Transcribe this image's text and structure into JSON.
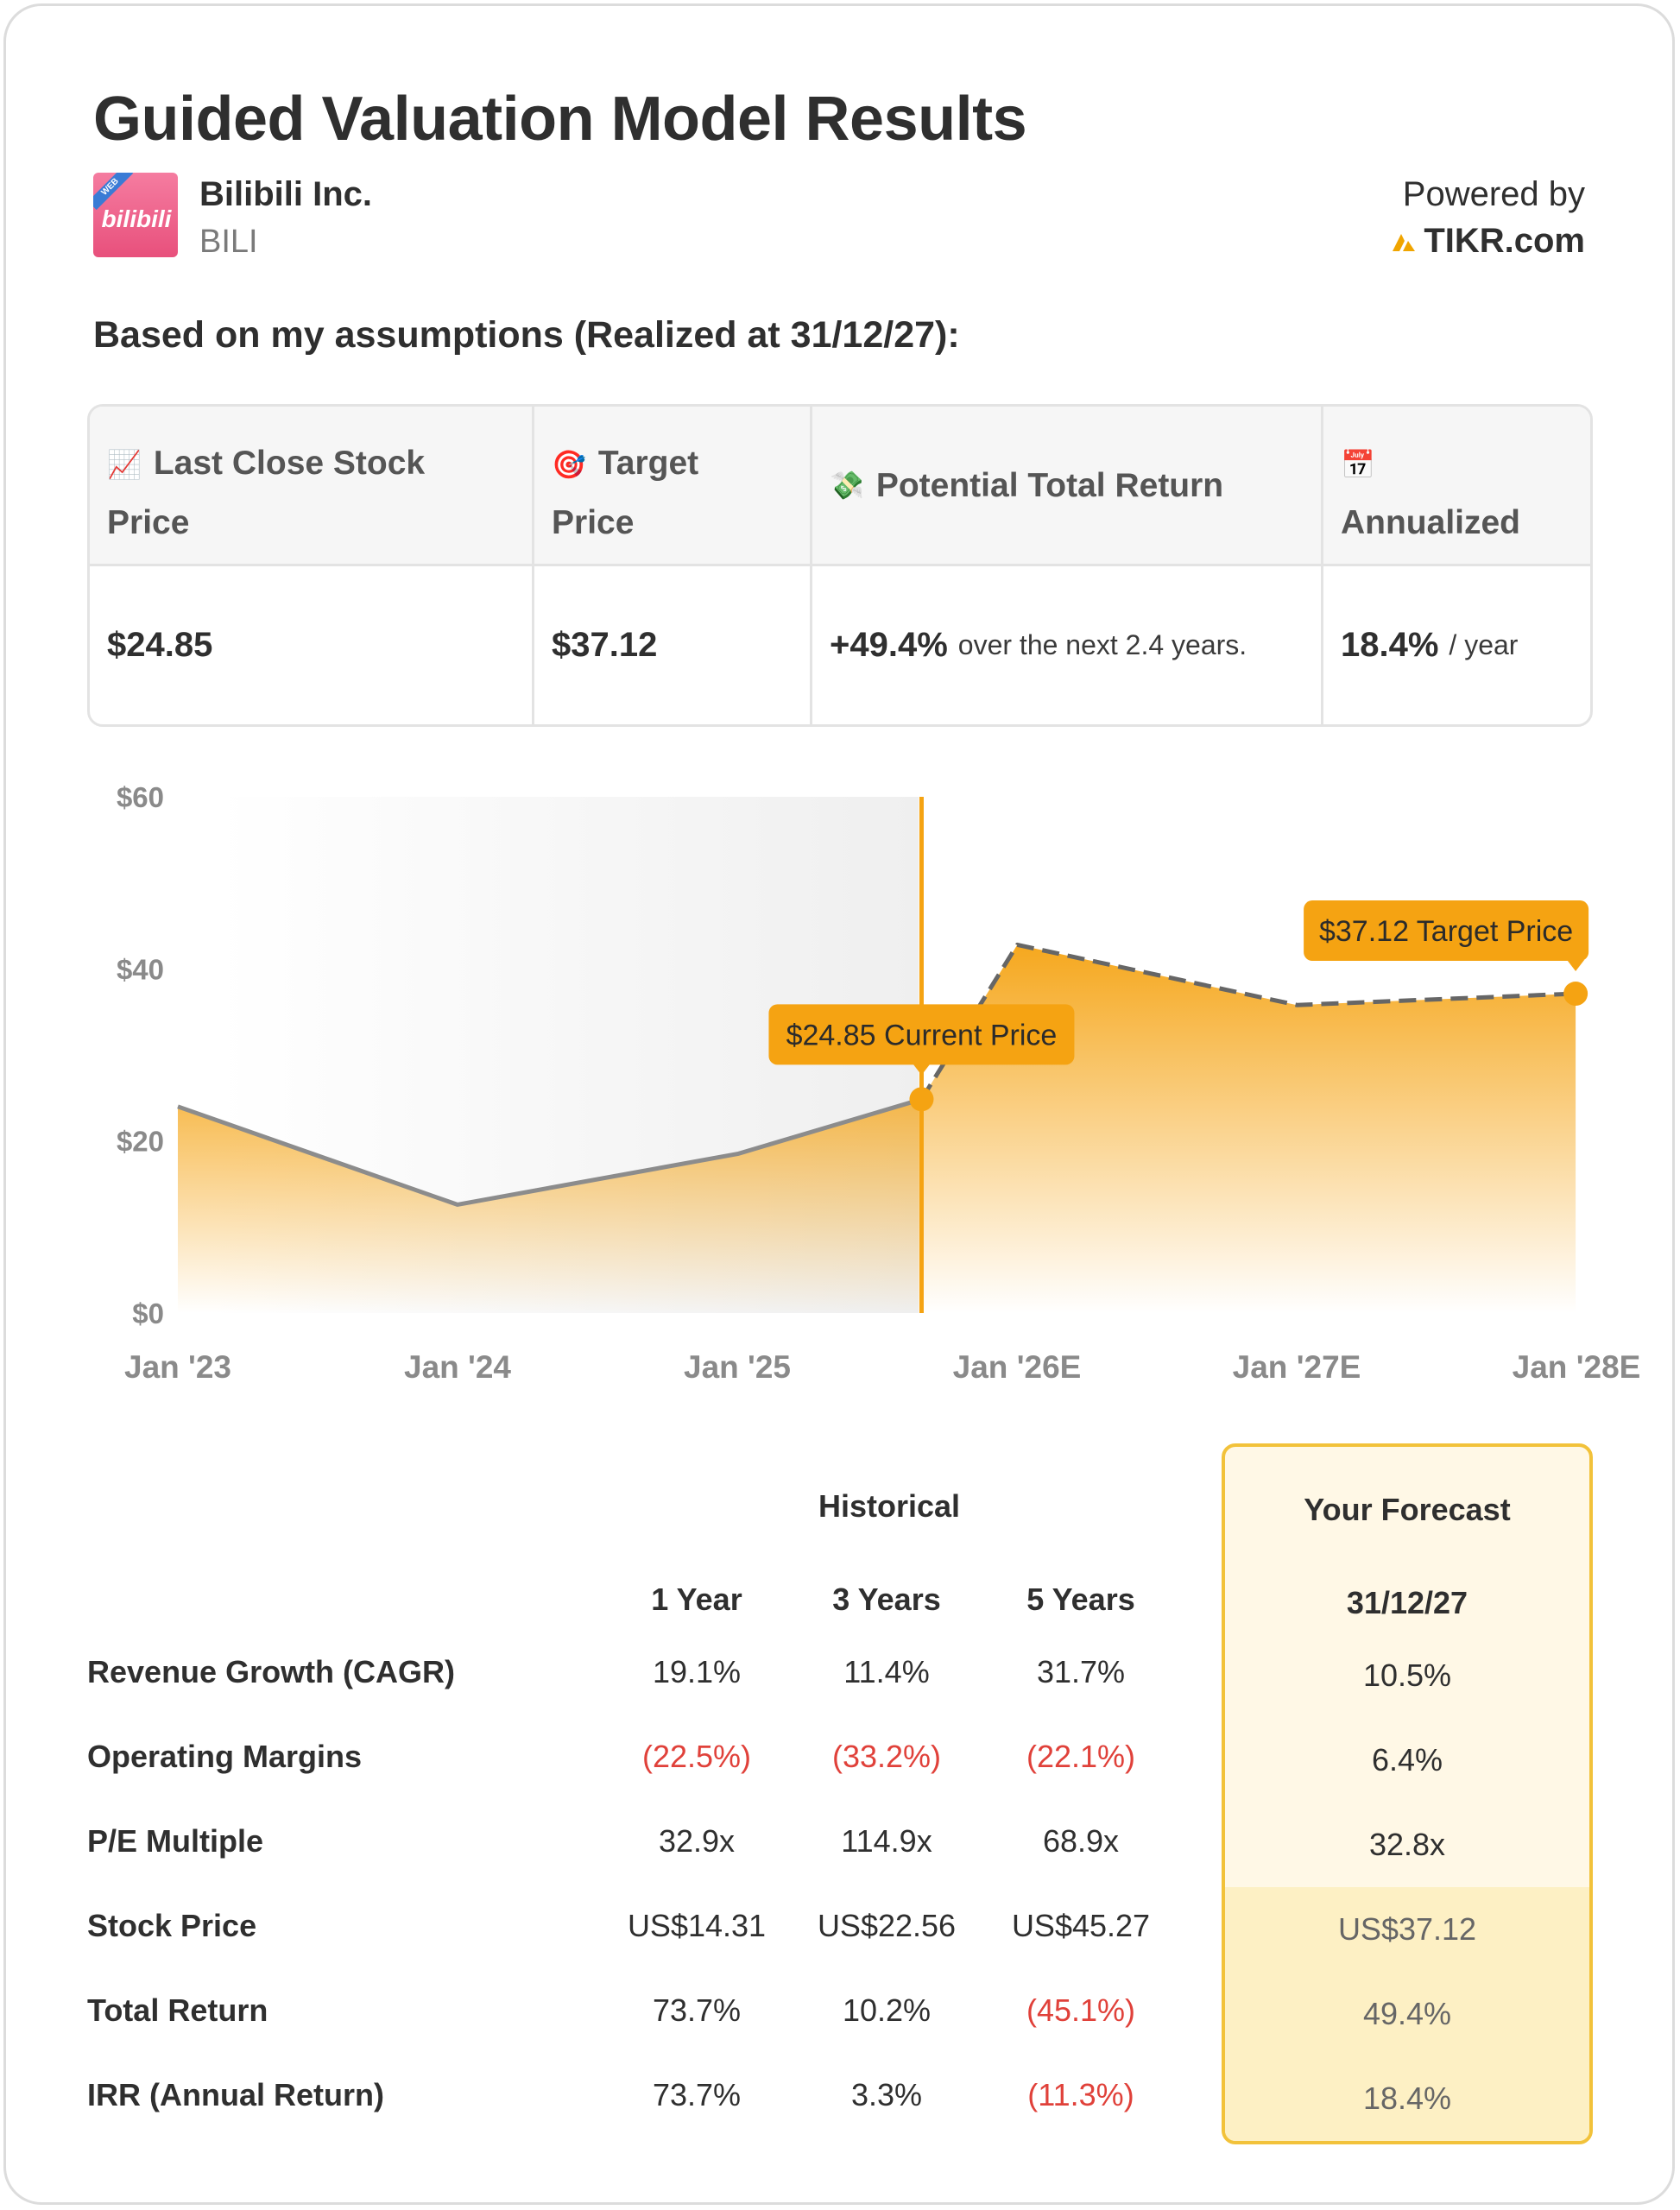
{
  "title": "Guided Valuation Model Results",
  "company": {
    "name": "Bilibili Inc.",
    "ticker": "BILI",
    "logo_text": "bilibili",
    "logo_badge": "WEB"
  },
  "powered": {
    "label": "Powered by",
    "brand": "TIKR.com",
    "brand_color": "#f0a500"
  },
  "assumptions": "Based on my assumptions (Realized at 31/12/27):",
  "metrics": {
    "last_close_label_1": "Last Close Stock",
    "last_close_label_2": "Price",
    "target_label_1": "Target",
    "target_label_2": "Price",
    "return_label": "Potential Total Return",
    "annual_label": "Annualized",
    "last_close_value": "$24.85",
    "target_value": "$37.12",
    "return_value": "+49.4%",
    "return_sub": "over the next 2.4 years.",
    "annual_value": "18.4%",
    "annual_sub": "/ year",
    "icons": [
      "chart-increasing-icon",
      "target-icon",
      "money-wings-icon",
      "calendar-icon"
    ]
  },
  "chart_data": {
    "type": "area",
    "y_ticks": [
      "$60",
      "$40",
      "$20",
      "$0"
    ],
    "ylim": [
      0,
      60
    ],
    "x_ticks": [
      "Jan '23",
      "Jan '24",
      "Jan '25",
      "Jan '26E",
      "Jan '27E",
      "Jan '28E"
    ],
    "series": [
      {
        "x": [
          "2023-01-01",
          "2024-01-01",
          "2025-01-01",
          "2025-08-29"
        ],
        "values": [
          24.0,
          12.6,
          18.5,
          24.85
        ]
      },
      {
        "x": [
          "2025-08-29",
          "2026-01-01",
          "2027-01-01",
          "2027-12-31"
        ],
        "values": [
          24.85,
          42.8,
          35.8,
          37.12
        ]
      }
    ],
    "current_price_label": "$24.85 Current Price",
    "target_price_label": "$37.12 Target Price",
    "accent_color": "#f5a312"
  },
  "table": {
    "historical_header": "Historical",
    "forecast_header": "Your Forecast",
    "columns": [
      "1 Year",
      "3 Years",
      "5 Years"
    ],
    "forecast_column": "31/12/27",
    "rows": [
      {
        "label": "Revenue Growth (CAGR)",
        "values": [
          "19.1%",
          "11.4%",
          "31.7%"
        ],
        "forecast": "10.5%"
      },
      {
        "label": "Operating Margins",
        "values": [
          "(22.5%)",
          "(33.2%)",
          "(22.1%)"
        ],
        "forecast": "6.4%"
      },
      {
        "label": "P/E Multiple",
        "values": [
          "32.9x",
          "114.9x",
          "68.9x"
        ],
        "forecast": "32.8x"
      },
      {
        "label": "Stock Price",
        "values": [
          "US$14.31",
          "US$22.56",
          "US$45.27"
        ],
        "forecast": "US$37.12"
      },
      {
        "label": "Total Return",
        "values": [
          "73.7%",
          "10.2%",
          "(45.1%)"
        ],
        "forecast": "49.4%"
      },
      {
        "label": "IRR (Annual Return)",
        "values": [
          "73.7%",
          "3.3%",
          "(11.3%)"
        ],
        "forecast": "18.4%"
      }
    ],
    "negative_color": "#e0413a"
  }
}
